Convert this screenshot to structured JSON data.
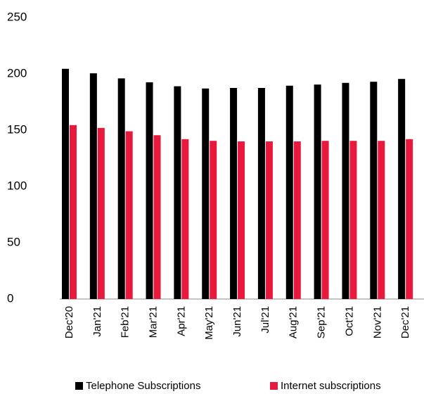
{
  "chart_data": {
    "type": "bar",
    "categories": [
      "Dec'20",
      "Jan'21",
      "Feb'21",
      "Mar'21",
      "Apr'21",
      "May'21",
      "Jun'21",
      "Jul'21",
      "Aug'21",
      "Sep'21",
      "Oct'21",
      "Nov'21",
      "Dec'21"
    ],
    "series": [
      {
        "name": "Telephone Subscriptions",
        "color": "#000000",
        "values": [
          204.5,
          200.5,
          196,
          192.5,
          189,
          187,
          187.5,
          187.5,
          189.5,
          190.5,
          192,
          193,
          195.5
        ]
      },
      {
        "name": "Internet subscriptions",
        "color": "#e8193c",
        "values": [
          154.5,
          152,
          149,
          145.5,
          142,
          140.5,
          140,
          140,
          140,
          140.5,
          140.5,
          140.5,
          142
        ]
      }
    ],
    "ylim": [
      0,
      250
    ],
    "yticks": [
      0,
      50,
      100,
      150,
      200,
      250
    ],
    "grid": false,
    "legend": "bottom"
  }
}
